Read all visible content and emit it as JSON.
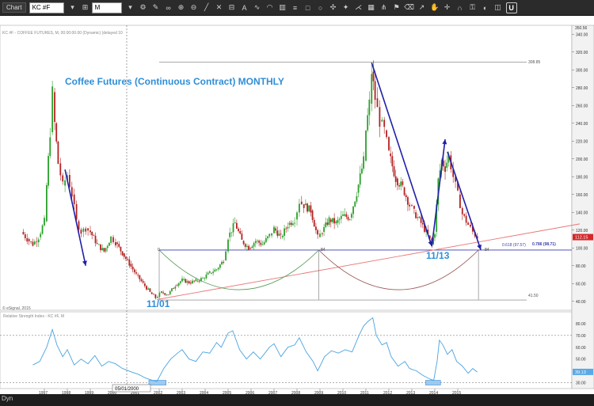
{
  "toolbar": {
    "tab_label": "Chart",
    "symbol": "KC #F",
    "interval": "M",
    "u_label": "U"
  },
  "chart_data": {
    "type": "candlestick",
    "title": "Coffee Futures (Continuous Contract) MONTHLY",
    "header_line": "KC #F - COFFEE FUTURES, M, 00:00:00.00 (Dynamic) (delayed 10",
    "watermark": "© eSignal, 2015",
    "x_tick_labels": [
      "1997",
      "1998",
      "1999",
      "2000",
      "2001",
      "2002",
      "2003",
      "2004",
      "2005",
      "2006",
      "2007",
      "2008",
      "2009",
      "2010",
      "2011",
      "2012",
      "2013",
      "2014",
      "2015"
    ],
    "cursor_date_label": "05/01/2000",
    "price_axis": {
      "range": [
        30,
        350
      ],
      "tick_labels": [
        "40.00",
        "60.00",
        "80.00",
        "100.00",
        "120.00",
        "140.00",
        "160.00",
        "180.00",
        "200.00",
        "220.00",
        "240.00",
        "260.00",
        "280.00",
        "300.00",
        "320.00",
        "340.00"
      ],
      "top_label": "350.56",
      "last_price_label": "112.15"
    },
    "rsi_axis": {
      "tick_labels": [
        "30.00",
        "40.00",
        "50.00",
        "60.00",
        "70.00",
        "80.00"
      ],
      "current_label": "39.13"
    },
    "rsi_title": "Relative Strength Index - KC #F, M",
    "annotations": {
      "high_line_label": "308.85",
      "low_line_label": "41.50",
      "support_label": "0.618 (97.57)",
      "support_label2": "0.786 (98.71)",
      "label_2001": "11/01",
      "label_2013": "11/13",
      "arc_zero": "0",
      "arc_mid": "84",
      "arc_end": "84"
    },
    "price_series": [
      [
        1996.0,
        118
      ],
      [
        1996.25,
        110
      ],
      [
        1996.5,
        104
      ],
      [
        1996.75,
        112
      ],
      [
        1997.0,
        130
      ],
      [
        1997.1,
        170
      ],
      [
        1997.25,
        230
      ],
      [
        1997.35,
        275
      ],
      [
        1997.45,
        240
      ],
      [
        1997.6,
        195
      ],
      [
        1997.8,
        170
      ],
      [
        1998.0,
        182
      ],
      [
        1998.2,
        160
      ],
      [
        1998.4,
        130
      ],
      [
        1998.6,
        118
      ],
      [
        1998.8,
        122
      ],
      [
        1999.0,
        118
      ],
      [
        1999.3,
        104
      ],
      [
        1999.6,
        96
      ],
      [
        1999.9,
        112
      ],
      [
        2000.1,
        106
      ],
      [
        2000.4,
        94
      ],
      [
        2000.7,
        82
      ],
      [
        2001.0,
        70
      ],
      [
        2001.3,
        60
      ],
      [
        2001.6,
        50
      ],
      [
        2001.84,
        44
      ],
      [
        2002.1,
        50
      ],
      [
        2002.4,
        48
      ],
      [
        2002.7,
        58
      ],
      [
        2003.0,
        64
      ],
      [
        2003.3,
        61
      ],
      [
        2003.6,
        63
      ],
      [
        2003.9,
        66
      ],
      [
        2004.2,
        72
      ],
      [
        2004.5,
        76
      ],
      [
        2004.8,
        86
      ],
      [
        2005.0,
        112
      ],
      [
        2005.3,
        128
      ],
      [
        2005.6,
        108
      ],
      [
        2005.9,
        100
      ],
      [
        2006.2,
        108
      ],
      [
        2006.5,
        104
      ],
      [
        2006.8,
        114
      ],
      [
        2007.0,
        122
      ],
      [
        2007.3,
        112
      ],
      [
        2007.6,
        126
      ],
      [
        2007.9,
        132
      ],
      [
        2008.1,
        152
      ],
      [
        2008.3,
        148
      ],
      [
        2008.6,
        142
      ],
      [
        2008.9,
        112
      ],
      [
        2009.1,
        118
      ],
      [
        2009.4,
        132
      ],
      [
        2009.7,
        128
      ],
      [
        2010.0,
        136
      ],
      [
        2010.3,
        134
      ],
      [
        2010.6,
        162
      ],
      [
        2010.9,
        198
      ],
      [
        2011.0,
        232
      ],
      [
        2011.15,
        262
      ],
      [
        2011.25,
        298
      ],
      [
        2011.4,
        268
      ],
      [
        2011.6,
        242
      ],
      [
        2011.8,
        232
      ],
      [
        2012.0,
        206
      ],
      [
        2012.3,
        178
      ],
      [
        2012.6,
        168
      ],
      [
        2012.9,
        148
      ],
      [
        2013.1,
        140
      ],
      [
        2013.4,
        128
      ],
      [
        2013.7,
        114
      ],
      [
        2013.87,
        104
      ],
      [
        2014.0,
        118
      ],
      [
        2014.15,
        176
      ],
      [
        2014.3,
        198
      ],
      [
        2014.45,
        190
      ],
      [
        2014.6,
        204
      ],
      [
        2014.8,
        180
      ],
      [
        2015.0,
        160
      ],
      [
        2015.2,
        138
      ],
      [
        2015.45,
        126
      ],
      [
        2015.65,
        118
      ],
      [
        2015.85,
        112
      ]
    ],
    "rsi_series": [
      [
        1996.5,
        45
      ],
      [
        1996.8,
        48
      ],
      [
        1997.1,
        60
      ],
      [
        1997.35,
        75
      ],
      [
        1997.55,
        62
      ],
      [
        1997.8,
        52
      ],
      [
        1998.0,
        58
      ],
      [
        1998.3,
        45
      ],
      [
        1998.6,
        50
      ],
      [
        1998.9,
        46
      ],
      [
        1999.2,
        53
      ],
      [
        1999.5,
        44
      ],
      [
        1999.8,
        48
      ],
      [
        2000.1,
        46
      ],
      [
        2000.4,
        42
      ],
      [
        2000.8,
        39
      ],
      [
        2001.1,
        37
      ],
      [
        2001.4,
        34
      ],
      [
        2001.7,
        32
      ],
      [
        2001.9,
        31
      ],
      [
        2002.2,
        42
      ],
      [
        2002.5,
        50
      ],
      [
        2002.8,
        55
      ],
      [
        2003.0,
        58
      ],
      [
        2003.3,
        50
      ],
      [
        2003.6,
        48
      ],
      [
        2003.9,
        56
      ],
      [
        2004.2,
        55
      ],
      [
        2004.5,
        64
      ],
      [
        2004.7,
        60
      ],
      [
        2005.0,
        72
      ],
      [
        2005.2,
        74
      ],
      [
        2005.5,
        58
      ],
      [
        2005.8,
        50
      ],
      [
        2006.1,
        56
      ],
      [
        2006.4,
        50
      ],
      [
        2006.8,
        60
      ],
      [
        2007.0,
        63
      ],
      [
        2007.3,
        52
      ],
      [
        2007.6,
        60
      ],
      [
        2007.9,
        62
      ],
      [
        2008.1,
        68
      ],
      [
        2008.4,
        56
      ],
      [
        2008.7,
        48
      ],
      [
        2008.9,
        40
      ],
      [
        2009.2,
        52
      ],
      [
        2009.5,
        57
      ],
      [
        2009.8,
        55
      ],
      [
        2010.1,
        58
      ],
      [
        2010.4,
        56
      ],
      [
        2010.7,
        70
      ],
      [
        2010.9,
        78
      ],
      [
        2011.1,
        82
      ],
      [
        2011.3,
        85
      ],
      [
        2011.45,
        70
      ],
      [
        2011.7,
        62
      ],
      [
        2011.9,
        64
      ],
      [
        2012.1,
        52
      ],
      [
        2012.4,
        44
      ],
      [
        2012.7,
        48
      ],
      [
        2012.9,
        42
      ],
      [
        2013.2,
        40
      ],
      [
        2013.5,
        36
      ],
      [
        2013.8,
        33
      ],
      [
        2013.95,
        32
      ],
      [
        2014.1,
        48
      ],
      [
        2014.2,
        66
      ],
      [
        2014.35,
        62
      ],
      [
        2014.55,
        54
      ],
      [
        2014.75,
        58
      ],
      [
        2014.95,
        48
      ],
      [
        2015.2,
        44
      ],
      [
        2015.45,
        38
      ],
      [
        2015.65,
        42
      ],
      [
        2015.85,
        39
      ]
    ]
  }
}
